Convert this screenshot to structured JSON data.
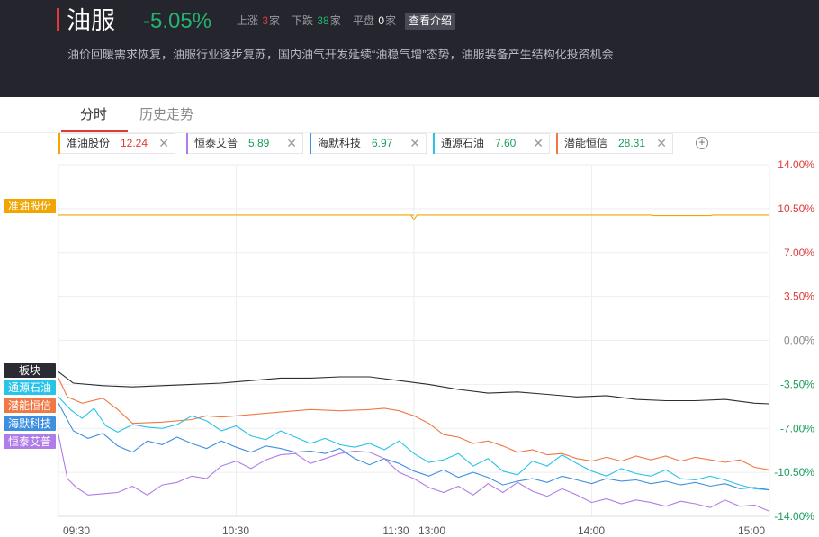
{
  "header": {
    "title": "油服",
    "change": "-5.05%",
    "up_label": "上涨",
    "up_count": "3",
    "up_unit": "家",
    "down_label": "下跌",
    "down_count": "38",
    "down_unit": "家",
    "flat_label": "平盘",
    "flat_count": "0",
    "flat_unit": "家",
    "intro_button": "查看介绍",
    "description": "油价回暖需求恢复，油服行业逐步复苏，国内油气开发延续“油稳气增”态势，油服装备产生结构化投资机会"
  },
  "tabs": [
    {
      "label": "分时",
      "active": true
    },
    {
      "label": "历史走势",
      "active": false
    }
  ],
  "stocks": [
    {
      "name": "准油股份",
      "price": "12.24",
      "color": "#f0a500",
      "price_color": "#e03a3a"
    },
    {
      "name": "恒泰艾普",
      "price": "5.89",
      "color": "#b07ce8",
      "price_color": "#1a9e5a"
    },
    {
      "name": "海默科技",
      "price": "6.97",
      "color": "#3d8fe0",
      "price_color": "#1a9e5a"
    },
    {
      "name": "通源石油",
      "price": "7.60",
      "color": "#29c3e8",
      "price_color": "#1a9e5a"
    },
    {
      "name": "潜能恒信",
      "price": "28.31",
      "color": "#f07844",
      "price_color": "#1a9e5a"
    }
  ],
  "add_icon": "plus-circle-icon",
  "close_icon": "close-icon",
  "chart_data": {
    "type": "line",
    "x_ticks": [
      "09:30",
      "10:30",
      "11:30",
      "13:00",
      "14:00",
      "15:00"
    ],
    "y_ticks": [
      "14.00%",
      "10.50%",
      "7.00%",
      "3.50%",
      "0.00%",
      "-3.50%",
      "-7.00%",
      "-10.50%",
      "-14.00%"
    ],
    "ylim": [
      -14,
      14
    ],
    "y_tick_colors": {
      "positive": "#e03a3a",
      "zero": "#888888",
      "negative": "#1a9e5a"
    },
    "legend_tags": [
      {
        "label": "准油股份",
        "color": "#f0a500"
      },
      {
        "label": "板块",
        "color": "#2b2b33"
      },
      {
        "label": "通源石油",
        "color": "#29c3e8"
      },
      {
        "label": "潜能恒信",
        "color": "#f07844"
      },
      {
        "label": "海默科技",
        "color": "#3d8fe0"
      },
      {
        "label": "恒泰艾普",
        "color": "#b07ce8"
      }
    ],
    "series": [
      {
        "name": "准油股份",
        "color": "#f0a500",
        "points": [
          [
            0,
            10.0
          ],
          [
            120,
            10.0
          ],
          [
            119,
            10.0
          ],
          [
            120,
            9.6
          ],
          [
            121,
            10.0
          ],
          [
            200,
            10.0
          ],
          [
            201,
            9.95
          ],
          [
            220,
            9.95
          ],
          [
            221,
            10.0
          ],
          [
            240,
            10.0
          ]
        ]
      },
      {
        "name": "板块",
        "color": "#2b2b33",
        "points": [
          [
            0,
            -2.5
          ],
          [
            5,
            -3.4
          ],
          [
            15,
            -3.6
          ],
          [
            25,
            -3.7
          ],
          [
            35,
            -3.6
          ],
          [
            45,
            -3.5
          ],
          [
            55,
            -3.4
          ],
          [
            65,
            -3.2
          ],
          [
            75,
            -3.0
          ],
          [
            85,
            -3.0
          ],
          [
            95,
            -2.9
          ],
          [
            105,
            -2.9
          ],
          [
            115,
            -3.2
          ],
          [
            125,
            -3.5
          ],
          [
            135,
            -3.9
          ],
          [
            145,
            -4.2
          ],
          [
            155,
            -4.1
          ],
          [
            165,
            -4.3
          ],
          [
            175,
            -4.5
          ],
          [
            185,
            -4.4
          ],
          [
            195,
            -4.7
          ],
          [
            205,
            -4.8
          ],
          [
            215,
            -4.8
          ],
          [
            225,
            -4.7
          ],
          [
            235,
            -5.0
          ],
          [
            240,
            -5.05
          ]
        ]
      },
      {
        "name": "潜能恒信",
        "color": "#f07844",
        "points": [
          [
            0,
            -3.0
          ],
          [
            3,
            -4.5
          ],
          [
            8,
            -5.0
          ],
          [
            15,
            -4.6
          ],
          [
            20,
            -5.5
          ],
          [
            25,
            -6.6
          ],
          [
            35,
            -6.5
          ],
          [
            45,
            -6.3
          ],
          [
            50,
            -6.0
          ],
          [
            55,
            -6.1
          ],
          [
            65,
            -5.9
          ],
          [
            75,
            -5.7
          ],
          [
            85,
            -5.5
          ],
          [
            95,
            -5.6
          ],
          [
            105,
            -5.5
          ],
          [
            110,
            -5.4
          ],
          [
            115,
            -5.6
          ],
          [
            120,
            -6.0
          ],
          [
            125,
            -6.6
          ],
          [
            130,
            -7.5
          ],
          [
            135,
            -7.7
          ],
          [
            140,
            -8.2
          ],
          [
            145,
            -8.0
          ],
          [
            150,
            -8.4
          ],
          [
            155,
            -8.9
          ],
          [
            160,
            -8.7
          ],
          [
            165,
            -9.1
          ],
          [
            170,
            -9.0
          ],
          [
            175,
            -9.4
          ],
          [
            180,
            -9.6
          ],
          [
            185,
            -9.3
          ],
          [
            190,
            -9.6
          ],
          [
            195,
            -9.2
          ],
          [
            200,
            -9.5
          ],
          [
            205,
            -9.2
          ],
          [
            210,
            -9.6
          ],
          [
            215,
            -9.3
          ],
          [
            220,
            -9.5
          ],
          [
            225,
            -9.7
          ],
          [
            230,
            -9.5
          ],
          [
            235,
            -10.1
          ],
          [
            240,
            -10.3
          ]
        ]
      },
      {
        "name": "通源石油",
        "color": "#29c3e8",
        "points": [
          [
            0,
            -4.5
          ],
          [
            4,
            -5.5
          ],
          [
            8,
            -6.2
          ],
          [
            12,
            -5.4
          ],
          [
            16,
            -6.8
          ],
          [
            20,
            -7.3
          ],
          [
            25,
            -6.7
          ],
          [
            30,
            -6.9
          ],
          [
            35,
            -7.0
          ],
          [
            40,
            -6.7
          ],
          [
            45,
            -6.0
          ],
          [
            50,
            -6.4
          ],
          [
            55,
            -7.2
          ],
          [
            60,
            -6.8
          ],
          [
            65,
            -7.6
          ],
          [
            70,
            -7.9
          ],
          [
            75,
            -7.2
          ],
          [
            80,
            -7.7
          ],
          [
            85,
            -8.2
          ],
          [
            90,
            -7.8
          ],
          [
            95,
            -8.3
          ],
          [
            100,
            -8.5
          ],
          [
            105,
            -8.2
          ],
          [
            110,
            -8.7
          ],
          [
            115,
            -8.0
          ],
          [
            120,
            -9.0
          ],
          [
            125,
            -9.7
          ],
          [
            130,
            -9.5
          ],
          [
            135,
            -9.0
          ],
          [
            140,
            -10.0
          ],
          [
            145,
            -9.4
          ],
          [
            150,
            -10.4
          ],
          [
            155,
            -10.7
          ],
          [
            160,
            -9.6
          ],
          [
            165,
            -10.0
          ],
          [
            170,
            -9.1
          ],
          [
            175,
            -9.8
          ],
          [
            180,
            -10.4
          ],
          [
            185,
            -10.8
          ],
          [
            190,
            -10.2
          ],
          [
            195,
            -10.6
          ],
          [
            200,
            -10.8
          ],
          [
            205,
            -10.3
          ],
          [
            210,
            -11.0
          ],
          [
            215,
            -11.1
          ],
          [
            220,
            -10.8
          ],
          [
            225,
            -11.1
          ],
          [
            230,
            -11.5
          ],
          [
            235,
            -11.8
          ],
          [
            240,
            -11.9
          ]
        ]
      },
      {
        "name": "海默科技",
        "color": "#3d8fe0",
        "points": [
          [
            0,
            -5.0
          ],
          [
            5,
            -7.2
          ],
          [
            10,
            -7.8
          ],
          [
            15,
            -7.4
          ],
          [
            20,
            -8.4
          ],
          [
            25,
            -8.9
          ],
          [
            30,
            -8.0
          ],
          [
            35,
            -8.3
          ],
          [
            40,
            -7.7
          ],
          [
            45,
            -8.2
          ],
          [
            50,
            -8.6
          ],
          [
            55,
            -8.0
          ],
          [
            60,
            -8.5
          ],
          [
            65,
            -8.9
          ],
          [
            70,
            -8.4
          ],
          [
            75,
            -8.6
          ],
          [
            80,
            -8.9
          ],
          [
            85,
            -8.8
          ],
          [
            90,
            -9.0
          ],
          [
            95,
            -8.6
          ],
          [
            100,
            -9.4
          ],
          [
            105,
            -9.9
          ],
          [
            110,
            -9.4
          ],
          [
            115,
            -9.8
          ],
          [
            120,
            -10.4
          ],
          [
            125,
            -10.8
          ],
          [
            130,
            -10.3
          ],
          [
            135,
            -10.9
          ],
          [
            140,
            -10.5
          ],
          [
            145,
            -10.9
          ],
          [
            150,
            -11.5
          ],
          [
            155,
            -11.2
          ],
          [
            160,
            -11.0
          ],
          [
            165,
            -11.3
          ],
          [
            170,
            -10.8
          ],
          [
            175,
            -11.1
          ],
          [
            180,
            -11.4
          ],
          [
            185,
            -11.0
          ],
          [
            190,
            -11.2
          ],
          [
            195,
            -11.1
          ],
          [
            200,
            -11.4
          ],
          [
            205,
            -11.2
          ],
          [
            210,
            -11.5
          ],
          [
            215,
            -11.3
          ],
          [
            220,
            -11.6
          ],
          [
            225,
            -11.4
          ],
          [
            230,
            -11.8
          ],
          [
            235,
            -11.7
          ],
          [
            240,
            -11.9
          ]
        ]
      },
      {
        "name": "恒泰艾普",
        "color": "#b07ce8",
        "points": [
          [
            0,
            -7.5
          ],
          [
            3,
            -11.0
          ],
          [
            6,
            -11.7
          ],
          [
            10,
            -12.3
          ],
          [
            15,
            -12.2
          ],
          [
            20,
            -12.1
          ],
          [
            25,
            -11.6
          ],
          [
            30,
            -12.3
          ],
          [
            35,
            -11.5
          ],
          [
            40,
            -11.3
          ],
          [
            45,
            -10.8
          ],
          [
            50,
            -11.0
          ],
          [
            55,
            -10.0
          ],
          [
            60,
            -9.6
          ],
          [
            65,
            -10.2
          ],
          [
            70,
            -9.5
          ],
          [
            75,
            -9.1
          ],
          [
            80,
            -9.0
          ],
          [
            85,
            -9.8
          ],
          [
            90,
            -9.4
          ],
          [
            95,
            -9.0
          ],
          [
            100,
            -8.8
          ],
          [
            105,
            -8.9
          ],
          [
            110,
            -9.4
          ],
          [
            115,
            -10.5
          ],
          [
            120,
            -11.0
          ],
          [
            125,
            -11.7
          ],
          [
            130,
            -12.1
          ],
          [
            135,
            -11.6
          ],
          [
            140,
            -12.3
          ],
          [
            145,
            -11.4
          ],
          [
            150,
            -12.1
          ],
          [
            155,
            -11.3
          ],
          [
            160,
            -12.0
          ],
          [
            165,
            -12.4
          ],
          [
            170,
            -11.8
          ],
          [
            175,
            -12.3
          ],
          [
            180,
            -12.9
          ],
          [
            185,
            -12.6
          ],
          [
            190,
            -13.0
          ],
          [
            195,
            -12.7
          ],
          [
            200,
            -12.9
          ],
          [
            205,
            -13.2
          ],
          [
            210,
            -12.8
          ],
          [
            215,
            -13.0
          ],
          [
            220,
            -13.3
          ],
          [
            225,
            -12.7
          ],
          [
            230,
            -13.2
          ],
          [
            235,
            -13.1
          ],
          [
            240,
            -13.6
          ]
        ]
      }
    ]
  }
}
